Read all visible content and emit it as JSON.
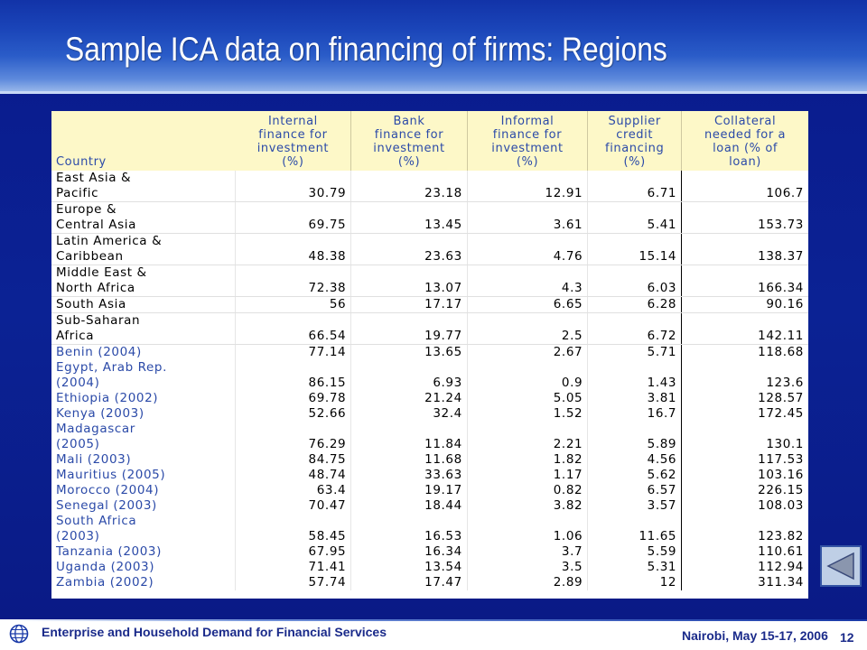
{
  "title": "Sample ICA data on financing of firms: Regions",
  "table": {
    "headers": [
      "Country",
      "Internal\nfinance for\ninvestment\n(%)",
      "Bank\nfinance for\ninvestment\n(%)",
      "Informal\nfinance for\ninvestment\n(%)",
      "Supplier\ncredit\nfinancing\n(%)",
      "Collateral\nneeded for a\nloan (% of\nloan)"
    ],
    "rows": [
      {
        "name": "East Asia &\nPacific",
        "internal": "30.79",
        "bank": "23.18",
        "informal": "12.91",
        "supplier": "6.71",
        "collateral": "106.7"
      },
      {
        "name": "Europe &\nCentral Asia",
        "internal": "69.75",
        "bank": "13.45",
        "informal": "3.61",
        "supplier": "5.41",
        "collateral": "153.73"
      },
      {
        "name": "Latin America &\nCaribbean",
        "internal": "48.38",
        "bank": "23.63",
        "informal": "4.76",
        "supplier": "15.14",
        "collateral": "138.37"
      },
      {
        "name": "Middle East &\nNorth Africa",
        "internal": "72.38",
        "bank": "13.07",
        "informal": "4.3",
        "supplier": "6.03",
        "collateral": "166.34"
      },
      {
        "name": "South Asia",
        "internal": "56",
        "bank": "17.17",
        "informal": "6.65",
        "supplier": "6.28",
        "collateral": "90.16"
      },
      {
        "name": "Sub-Saharan\nAfrica",
        "internal": "66.54",
        "bank": "19.77",
        "informal": "2.5",
        "supplier": "6.72",
        "collateral": "142.11"
      },
      {
        "name": "Benin (2004)",
        "internal": "77.14",
        "bank": "13.65",
        "informal": "2.67",
        "supplier": "5.71",
        "collateral": "118.68"
      },
      {
        "name": "Egypt, Arab Rep.\n(2004)",
        "internal": "86.15",
        "bank": "6.93",
        "informal": "0.9",
        "supplier": "1.43",
        "collateral": "123.6"
      },
      {
        "name": "Ethiopia (2002)",
        "internal": "69.78",
        "bank": "21.24",
        "informal": "5.05",
        "supplier": "3.81",
        "collateral": "128.57"
      },
      {
        "name": "Kenya (2003)",
        "internal": "52.66",
        "bank": "32.4",
        "informal": "1.52",
        "supplier": "16.7",
        "collateral": "172.45"
      },
      {
        "name": "Madagascar\n(2005)",
        "internal": "76.29",
        "bank": "11.84",
        "informal": "2.21",
        "supplier": "5.89",
        "collateral": "130.1"
      },
      {
        "name": "Mali (2003)",
        "internal": "84.75",
        "bank": "11.68",
        "informal": "1.82",
        "supplier": "4.56",
        "collateral": "117.53"
      },
      {
        "name": "Mauritius (2005)",
        "internal": "48.74",
        "bank": "33.63",
        "informal": "1.17",
        "supplier": "5.62",
        "collateral": "103.16"
      },
      {
        "name": "Morocco (2004)",
        "internal": "63.4",
        "bank": "19.17",
        "informal": "0.82",
        "supplier": "6.57",
        "collateral": "226.15"
      },
      {
        "name": "Senegal (2003)",
        "internal": "70.47",
        "bank": "18.44",
        "informal": "3.82",
        "supplier": "3.57",
        "collateral": "108.03"
      },
      {
        "name": "South Africa\n(2003)",
        "internal": "58.45",
        "bank": "16.53",
        "informal": "1.06",
        "supplier": "11.65",
        "collateral": "123.82"
      },
      {
        "name": "Tanzania (2003)",
        "internal": "67.95",
        "bank": "16.34",
        "informal": "3.7",
        "supplier": "5.59",
        "collateral": "110.61"
      },
      {
        "name": "Uganda (2003)",
        "internal": "71.41",
        "bank": "13.54",
        "informal": "3.5",
        "supplier": "5.31",
        "collateral": "112.94"
      },
      {
        "name": "Zambia (2002)",
        "internal": "57.74",
        "bank": "17.47",
        "informal": "2.89",
        "supplier": "12",
        "collateral": "311.34"
      }
    ]
  },
  "footer": {
    "left": "Enterprise and Household Demand for Financial Services",
    "right": "Nairobi, May 15-17, 2006",
    "page": "12"
  },
  "icons": {
    "footer_logo": "globe-icon",
    "nav": "back-triangle-icon"
  },
  "colors": {
    "slide_bg": "#0b2294",
    "header_fill": "#fdf8c8",
    "header_text": "#2b4aa8",
    "country_text": "#2b4aa8",
    "footer_text": "#1a2a8a"
  }
}
